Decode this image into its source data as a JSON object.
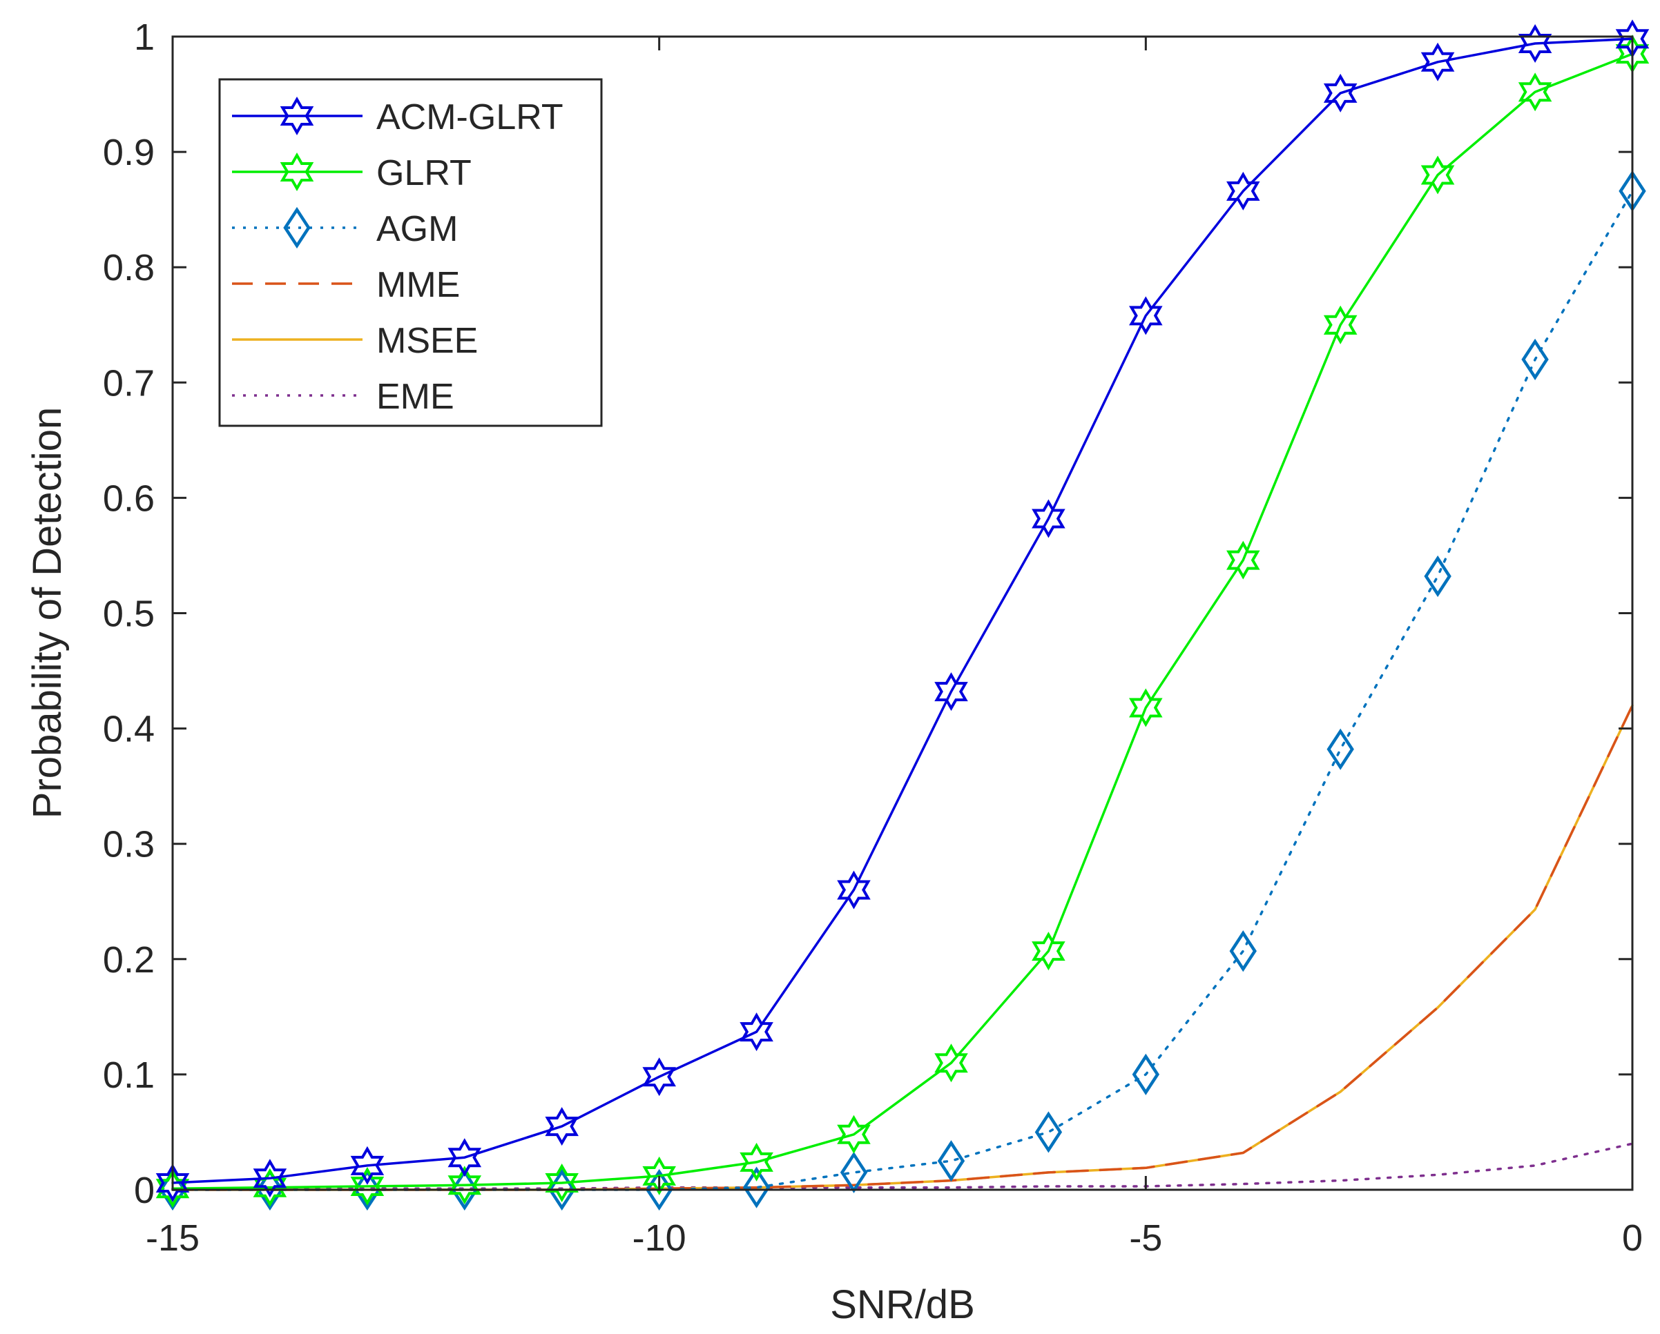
{
  "chart_data": {
    "type": "line",
    "title": "",
    "xlabel": "SNR/dB",
    "ylabel": "Probability of Detection",
    "xlim": [
      -15,
      0
    ],
    "ylim": [
      0,
      1
    ],
    "xticks": [
      -15,
      -10,
      -5,
      0
    ],
    "xtick_labels": [
      "-15",
      "-10",
      "-5",
      "0"
    ],
    "yticks": [
      0,
      0.1,
      0.2,
      0.3,
      0.4,
      0.5,
      0.6,
      0.7,
      0.8,
      0.9,
      1
    ],
    "ytick_labels": [
      "0",
      "0.1",
      "0.2",
      "0.3",
      "0.4",
      "0.5",
      "0.6",
      "0.7",
      "0.8",
      "0.9",
      "1"
    ],
    "grid": false,
    "legend_position": "top-left",
    "x": [
      -15,
      -14,
      -13,
      -12,
      -11,
      -10,
      -9,
      -8,
      -7,
      -6,
      -5,
      -4,
      -3,
      -2,
      -1,
      0
    ],
    "series": [
      {
        "name": "ACM-GLRT",
        "color": "#0000dd",
        "line": "solid",
        "marker": "hexagram",
        "values": [
          0.006,
          0.01,
          0.021,
          0.028,
          0.055,
          0.098,
          0.137,
          0.26,
          0.432,
          0.582,
          0.758,
          0.866,
          0.951,
          0.978,
          0.994,
          0.998
        ]
      },
      {
        "name": "GLRT",
        "color": "#00ee00",
        "line": "solid",
        "marker": "hexagram",
        "values": [
          0.001,
          0.002,
          0.003,
          0.004,
          0.006,
          0.012,
          0.024,
          0.048,
          0.11,
          0.207,
          0.418,
          0.546,
          0.75,
          0.88,
          0.952,
          0.985
        ]
      },
      {
        "name": "AGM",
        "color": "#0072bd",
        "line": "dotted",
        "marker": "diamond",
        "values": [
          0,
          0,
          0,
          0,
          0,
          0,
          0.002,
          0.015,
          0.025,
          0.05,
          0.1,
          0.207,
          0.382,
          0.532,
          0.72,
          0.866
        ]
      },
      {
        "name": "MME",
        "color": "#d95319",
        "line": "dashed",
        "marker": "none",
        "values": [
          0,
          0,
          0,
          0,
          0,
          0.001,
          0.002,
          0.004,
          0.008,
          0.015,
          0.019,
          0.032,
          0.085,
          0.158,
          0.243,
          0.42
        ]
      },
      {
        "name": "MSEE",
        "color": "#edb120",
        "line": "solid",
        "marker": "none",
        "values": [
          0,
          0,
          0,
          0,
          0,
          0.001,
          0.002,
          0.004,
          0.008,
          0.015,
          0.019,
          0.032,
          0.085,
          0.158,
          0.243,
          0.42
        ]
      },
      {
        "name": "EME",
        "color": "#7e2f8e",
        "line": "dotted",
        "marker": "none",
        "values": [
          0.001,
          0.001,
          0.001,
          0.001,
          0.001,
          0.002,
          0.002,
          0.002,
          0.002,
          0.003,
          0.003,
          0.005,
          0.008,
          0.013,
          0.021,
          0.04
        ]
      }
    ]
  }
}
